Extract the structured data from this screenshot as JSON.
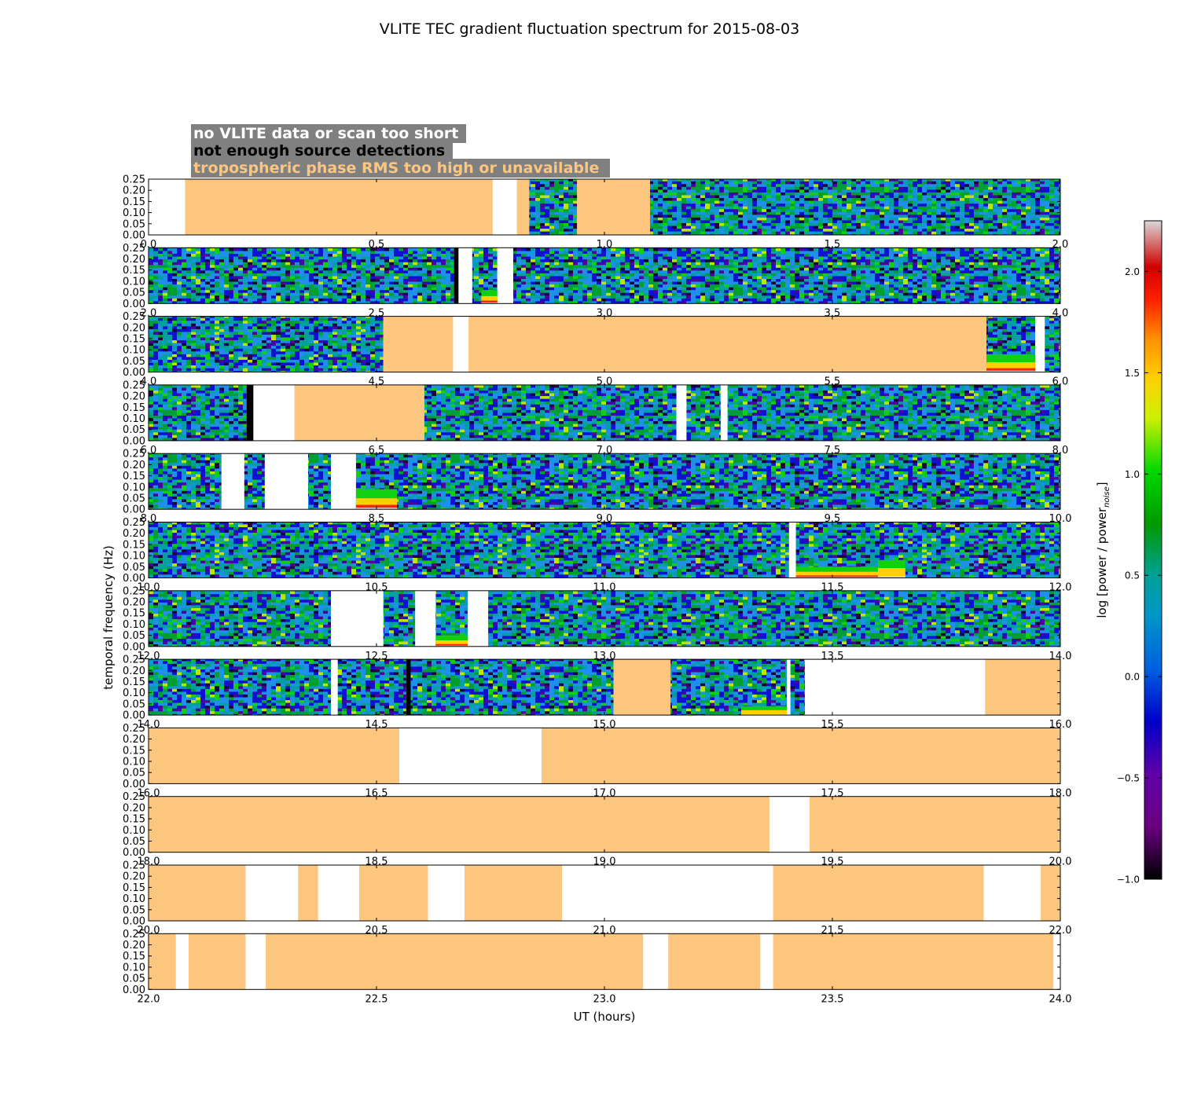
{
  "chart_data": {
    "type": "heatmap",
    "title": "VLITE TEC gradient fluctuation spectrum for 2015-08-03",
    "xlabel": "UT (hours)",
    "ylabel": "temporal frequency (Hz)",
    "ylim": [
      0.0,
      0.25
    ],
    "yticks": [
      "0.00",
      "0.05",
      "0.10",
      "0.15",
      "0.20",
      "0.25"
    ],
    "legend": {
      "placement": "top-left",
      "entries": [
        {
          "label": "no VLITE data or scan too short",
          "color": "#ffffff",
          "status": "no_data"
        },
        {
          "label": "not enough source detections",
          "color": "#000000",
          "status": "few_detections"
        },
        {
          "label": "tropospheric phase RMS too high or unavailable",
          "color": "#fdc67f",
          "status": "trop_rms"
        }
      ],
      "box_color": "#808080"
    },
    "colorbar": {
      "label": "log [power / power",
      "label_sub": "noise",
      "label_end": "]",
      "range": [
        -1.0,
        2.25
      ],
      "ticks": [
        "2.0",
        "1.5",
        "1.0",
        "0.5",
        "0.0",
        "−0.5",
        "−1.0"
      ],
      "tick_values": [
        2.0,
        1.5,
        1.0,
        0.5,
        0.0,
        -0.5,
        -1.0
      ]
    },
    "panels": [
      {
        "xlim": [
          0.0,
          2.0
        ],
        "xticks": [
          "0.0",
          "0.5",
          "1.0",
          "1.5",
          "2.0"
        ],
        "segments": [
          {
            "start": 0.0,
            "end": 0.08,
            "status": "no_data"
          },
          {
            "start": 0.08,
            "end": 0.755,
            "status": "trop_rms"
          },
          {
            "start": 0.755,
            "end": 0.808,
            "status": "no_data"
          },
          {
            "start": 0.808,
            "end": 0.835,
            "status": "trop_rms"
          },
          {
            "start": 0.835,
            "end": 0.94,
            "status": "data"
          },
          {
            "start": 0.94,
            "end": 1.1,
            "status": "trop_rms"
          },
          {
            "start": 1.1,
            "end": 2.0,
            "status": "data"
          }
        ]
      },
      {
        "xlim": [
          2.0,
          4.0
        ],
        "xticks": [
          "2.0",
          "2.5",
          "3.0",
          "3.5",
          "4.0"
        ],
        "segments": [
          {
            "start": 2.0,
            "end": 2.67,
            "status": "data"
          },
          {
            "start": 2.67,
            "end": 2.68,
            "status": "few_detections"
          },
          {
            "start": 2.68,
            "end": 2.71,
            "status": "no_data"
          },
          {
            "start": 2.71,
            "end": 2.765,
            "status": "data"
          },
          {
            "start": 2.765,
            "end": 2.8,
            "status": "no_data"
          },
          {
            "start": 2.8,
            "end": 4.0,
            "status": "data"
          }
        ]
      },
      {
        "xlim": [
          4.0,
          6.0
        ],
        "xticks": [
          "4.0",
          "4.5",
          "5.0",
          "5.5",
          "6.0"
        ],
        "segments": [
          {
            "start": 4.0,
            "end": 4.515,
            "status": "data"
          },
          {
            "start": 4.515,
            "end": 4.668,
            "status": "trop_rms"
          },
          {
            "start": 4.668,
            "end": 4.702,
            "status": "no_data"
          },
          {
            "start": 4.702,
            "end": 5.838,
            "status": "trop_rms"
          },
          {
            "start": 5.838,
            "end": 5.945,
            "status": "data"
          },
          {
            "start": 5.945,
            "end": 5.966,
            "status": "no_data"
          },
          {
            "start": 5.966,
            "end": 6.0,
            "status": "data"
          }
        ]
      },
      {
        "xlim": [
          6.0,
          8.0
        ],
        "xticks": [
          "6.0",
          "6.5",
          "7.0",
          "7.5",
          "8.0"
        ],
        "segments": [
          {
            "start": 6.0,
            "end": 6.215,
            "status": "data"
          },
          {
            "start": 6.215,
            "end": 6.23,
            "status": "few_detections"
          },
          {
            "start": 6.23,
            "end": 6.32,
            "status": "no_data"
          },
          {
            "start": 6.32,
            "end": 6.605,
            "status": "trop_rms"
          },
          {
            "start": 6.605,
            "end": 7.158,
            "status": "data"
          },
          {
            "start": 7.158,
            "end": 7.18,
            "status": "no_data"
          },
          {
            "start": 7.18,
            "end": 7.255,
            "status": "data"
          },
          {
            "start": 7.255,
            "end": 7.27,
            "status": "no_data"
          },
          {
            "start": 7.27,
            "end": 8.0,
            "status": "data"
          }
        ]
      },
      {
        "xlim": [
          8.0,
          10.0
        ],
        "xticks": [
          "8.0",
          "8.5",
          "9.0",
          "9.5",
          "10.0"
        ],
        "segments": [
          {
            "start": 8.0,
            "end": 8.16,
            "status": "data"
          },
          {
            "start": 8.16,
            "end": 8.21,
            "status": "no_data"
          },
          {
            "start": 8.21,
            "end": 8.255,
            "status": "data"
          },
          {
            "start": 8.255,
            "end": 8.35,
            "status": "no_data"
          },
          {
            "start": 8.35,
            "end": 8.4,
            "status": "data"
          },
          {
            "start": 8.4,
            "end": 8.455,
            "status": "no_data"
          },
          {
            "start": 8.455,
            "end": 10.0,
            "status": "data"
          }
        ]
      },
      {
        "xlim": [
          10.0,
          12.0
        ],
        "xticks": [
          "10.0",
          "10.5",
          "11.0",
          "11.5",
          "12.0"
        ],
        "segments": [
          {
            "start": 10.0,
            "end": 11.405,
            "status": "data"
          },
          {
            "start": 11.405,
            "end": 11.42,
            "status": "no_data"
          },
          {
            "start": 11.42,
            "end": 12.0,
            "status": "data"
          }
        ]
      },
      {
        "xlim": [
          12.0,
          14.0
        ],
        "xticks": [
          "12.0",
          "12.5",
          "13.0",
          "13.5",
          "14.0"
        ],
        "segments": [
          {
            "start": 12.0,
            "end": 12.4,
            "status": "data"
          },
          {
            "start": 12.4,
            "end": 12.515,
            "status": "no_data"
          },
          {
            "start": 12.515,
            "end": 12.585,
            "status": "data"
          },
          {
            "start": 12.585,
            "end": 12.63,
            "status": "no_data"
          },
          {
            "start": 12.63,
            "end": 12.7,
            "status": "data"
          },
          {
            "start": 12.7,
            "end": 12.745,
            "status": "no_data"
          },
          {
            "start": 12.745,
            "end": 14.0,
            "status": "data"
          }
        ]
      },
      {
        "xlim": [
          14.0,
          16.0
        ],
        "xticks": [
          "14.0",
          "14.5",
          "15.0",
          "15.5",
          "16.0"
        ],
        "segments": [
          {
            "start": 14.0,
            "end": 14.4,
            "status": "data"
          },
          {
            "start": 14.4,
            "end": 14.415,
            "status": "no_data"
          },
          {
            "start": 14.415,
            "end": 14.565,
            "status": "data"
          },
          {
            "start": 14.565,
            "end": 14.575,
            "status": "few_detections"
          },
          {
            "start": 14.575,
            "end": 15.02,
            "status": "data"
          },
          {
            "start": 15.02,
            "end": 15.145,
            "status": "trop_rms"
          },
          {
            "start": 15.145,
            "end": 15.4,
            "status": "data"
          },
          {
            "start": 15.4,
            "end": 15.408,
            "status": "no_data"
          },
          {
            "start": 15.408,
            "end": 15.44,
            "status": "data"
          },
          {
            "start": 15.44,
            "end": 15.835,
            "status": "no_data"
          },
          {
            "start": 15.835,
            "end": 16.0,
            "status": "trop_rms"
          }
        ]
      },
      {
        "xlim": [
          16.0,
          18.0
        ],
        "xticks": [
          "16.0",
          "16.5",
          "17.0",
          "17.5",
          "18.0"
        ],
        "segments": [
          {
            "start": 16.0,
            "end": 16.55,
            "status": "trop_rms"
          },
          {
            "start": 16.55,
            "end": 16.862,
            "status": "no_data"
          },
          {
            "start": 16.862,
            "end": 18.0,
            "status": "trop_rms"
          }
        ]
      },
      {
        "xlim": [
          18.0,
          20.0
        ],
        "xticks": [
          "18.0",
          "18.5",
          "19.0",
          "19.5",
          "20.0"
        ],
        "segments": [
          {
            "start": 18.0,
            "end": 19.362,
            "status": "trop_rms"
          },
          {
            "start": 19.362,
            "end": 19.45,
            "status": "no_data"
          },
          {
            "start": 19.45,
            "end": 20.0,
            "status": "trop_rms"
          }
        ]
      },
      {
        "xlim": [
          20.0,
          22.0
        ],
        "xticks": [
          "20.0",
          "20.5",
          "21.0",
          "21.5",
          "22.0"
        ],
        "segments": [
          {
            "start": 20.0,
            "end": 20.213,
            "status": "trop_rms"
          },
          {
            "start": 20.213,
            "end": 20.328,
            "status": "no_data"
          },
          {
            "start": 20.328,
            "end": 20.372,
            "status": "trop_rms"
          },
          {
            "start": 20.372,
            "end": 20.462,
            "status": "no_data"
          },
          {
            "start": 20.462,
            "end": 20.613,
            "status": "trop_rms"
          },
          {
            "start": 20.613,
            "end": 20.693,
            "status": "no_data"
          },
          {
            "start": 20.693,
            "end": 20.907,
            "status": "trop_rms"
          },
          {
            "start": 20.907,
            "end": 21.37,
            "status": "no_data"
          },
          {
            "start": 21.37,
            "end": 21.832,
            "status": "trop_rms"
          },
          {
            "start": 21.832,
            "end": 21.957,
            "status": "no_data"
          },
          {
            "start": 21.957,
            "end": 22.0,
            "status": "trop_rms"
          }
        ]
      },
      {
        "xlim": [
          22.0,
          24.0
        ],
        "xticks": [
          "22.0",
          "22.5",
          "23.0",
          "23.5",
          "24.0"
        ],
        "segments": [
          {
            "start": 22.0,
            "end": 22.06,
            "status": "trop_rms"
          },
          {
            "start": 22.06,
            "end": 22.088,
            "status": "no_data"
          },
          {
            "start": 22.088,
            "end": 22.213,
            "status": "trop_rms"
          },
          {
            "start": 22.213,
            "end": 22.257,
            "status": "no_data"
          },
          {
            "start": 22.257,
            "end": 23.085,
            "status": "trop_rms"
          },
          {
            "start": 23.085,
            "end": 23.14,
            "status": "no_data"
          },
          {
            "start": 23.14,
            "end": 23.342,
            "status": "trop_rms"
          },
          {
            "start": 23.342,
            "end": 23.37,
            "status": "no_data"
          },
          {
            "start": 23.37,
            "end": 23.985,
            "status": "trop_rms"
          },
          {
            "start": 23.985,
            "end": 24.0,
            "status": "no_data"
          }
        ]
      }
    ],
    "spectral_features": [
      {
        "panel": 1,
        "start": 2.73,
        "end": 2.765,
        "fmax": 0.06,
        "level": 1.9
      },
      {
        "panel": 2,
        "start": 5.838,
        "end": 5.945,
        "fmax": 0.08,
        "level": 1.9
      },
      {
        "panel": 4,
        "start": 8.455,
        "end": 8.545,
        "fmax": 0.09,
        "level": 2.0
      },
      {
        "panel": 5,
        "start": 11.42,
        "end": 11.6,
        "fmax": 0.05,
        "level": 1.9
      },
      {
        "panel": 5,
        "start": 11.6,
        "end": 11.66,
        "fmax": 0.08,
        "level": 1.5
      },
      {
        "panel": 6,
        "start": 12.63,
        "end": 12.7,
        "fmax": 0.05,
        "level": 1.8
      },
      {
        "panel": 7,
        "start": 15.3,
        "end": 15.4,
        "fmax": 0.04,
        "level": 1.3
      }
    ]
  }
}
